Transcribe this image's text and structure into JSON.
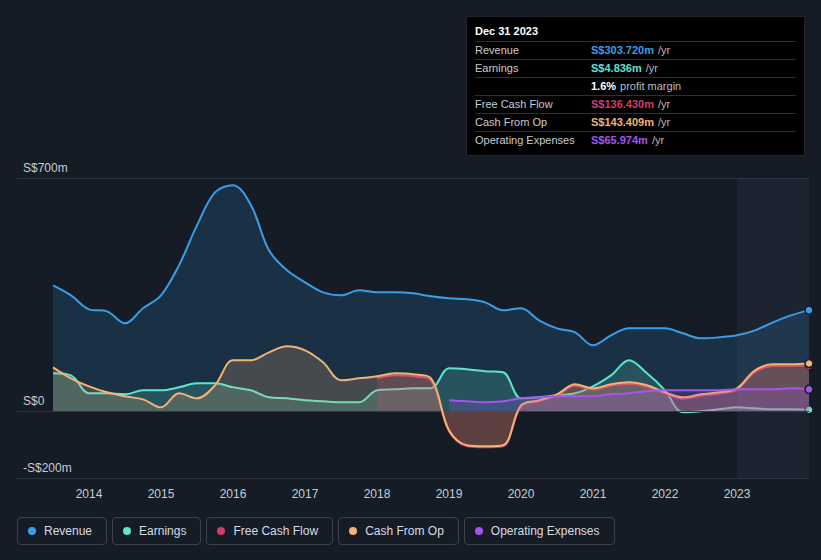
{
  "chart_data": {
    "type": "line",
    "x": [
      2013.5,
      2013.75,
      2014,
      2014.25,
      2014.5,
      2014.75,
      2015,
      2015.25,
      2015.5,
      2015.75,
      2016,
      2016.25,
      2016.5,
      2016.75,
      2017,
      2017.25,
      2017.5,
      2017.75,
      2018,
      2018.25,
      2018.5,
      2018.75,
      2019,
      2019.25,
      2019.5,
      2019.75,
      2020,
      2020.25,
      2020.5,
      2020.75,
      2021,
      2021.25,
      2021.5,
      2021.75,
      2022,
      2022.25,
      2022.5,
      2022.75,
      2023,
      2023.25,
      2023.5,
      2023.75,
      2024
    ],
    "xlim": [
      2013,
      2024
    ],
    "xticks": [
      2014,
      2015,
      2016,
      2017,
      2018,
      2019,
      2020,
      2021,
      2022,
      2023
    ],
    "ylim": [
      -200,
      700
    ],
    "yticks": [
      {
        "value": -200,
        "label": "-S$200m"
      },
      {
        "value": 0,
        "label": "S$0"
      },
      {
        "value": 700,
        "label": "S$700m"
      }
    ],
    "grid": true,
    "legend": "bottom-left",
    "series": [
      {
        "name": "Revenue",
        "color": "#3a9ee6",
        "values": [
          378,
          348,
          306,
          300,
          264,
          309,
          348,
          438,
          558,
          657,
          678,
          618,
          483,
          423,
          387,
          357,
          348,
          363,
          357,
          357,
          354,
          345,
          339,
          336,
          327,
          303,
          309,
          273,
          249,
          237,
          198,
          228,
          249,
          249,
          249,
          234,
          219,
          222,
          228,
          243,
          267,
          288,
          303.72
        ]
      },
      {
        "name": "Earnings",
        "color": "#5ee3cc",
        "values": [
          114,
          108,
          54,
          54,
          51,
          63,
          63,
          72,
          84,
          84,
          72,
          63,
          42,
          39,
          33,
          30,
          27,
          27,
          63,
          66,
          69,
          69,
          129,
          126,
          120,
          117,
          39,
          42,
          48,
          54,
          75,
          108,
          153,
          114,
          63,
          -3,
          0,
          6,
          12,
          9,
          6,
          6,
          4.836
        ]
      },
      {
        "name": "Free Cash Flow",
        "color": "#d43a6e",
        "values": [
          null,
          null,
          null,
          null,
          null,
          null,
          null,
          null,
          null,
          null,
          null,
          null,
          null,
          null,
          null,
          null,
          null,
          null,
          99,
          108,
          105,
          93,
          -60,
          -105,
          -108,
          -105,
          15,
          30,
          47,
          77,
          65,
          77,
          83,
          74,
          54,
          38,
          47,
          53,
          65,
          118,
          136,
          137,
          136.43
        ]
      },
      {
        "name": "Cash From Op",
        "color": "#f2b373",
        "values": [
          132,
          99,
          75,
          57,
          45,
          36,
          12,
          54,
          39,
          78,
          153,
          153,
          177,
          195,
          183,
          147,
          93,
          99,
          105,
          114,
          111,
          99,
          -57,
          -102,
          -105,
          -102,
          18,
          33,
          51,
          81,
          69,
          81,
          87,
          78,
          57,
          42,
          51,
          57,
          69,
          123,
          141,
          141,
          143.409
        ]
      },
      {
        "name": "Operating Expenses",
        "color": "#a555ee",
        "values": [
          null,
          null,
          null,
          null,
          null,
          null,
          null,
          null,
          null,
          null,
          null,
          null,
          null,
          null,
          null,
          null,
          null,
          null,
          null,
          null,
          null,
          null,
          33,
          30,
          27,
          30,
          39,
          42,
          45,
          45,
          45,
          51,
          54,
          60,
          63,
          63,
          63,
          63,
          66,
          66,
          66,
          69,
          65.974
        ]
      }
    ],
    "annotation": {
      "date": "Dec 31 2023",
      "rows": [
        {
          "label": "Revenue",
          "text": "S$303.720m /yr"
        },
        {
          "label": "Earnings",
          "text": "S$4.836m /yr"
        },
        {
          "text": "1.6% profit margin"
        },
        {
          "label": "Free Cash Flow",
          "text": "S$136.430m /yr"
        },
        {
          "label": "Cash From Op",
          "text": "S$143.409m /yr"
        },
        {
          "label": "Operating Expenses",
          "text": "S$65.974m /yr"
        }
      ]
    }
  }
}
